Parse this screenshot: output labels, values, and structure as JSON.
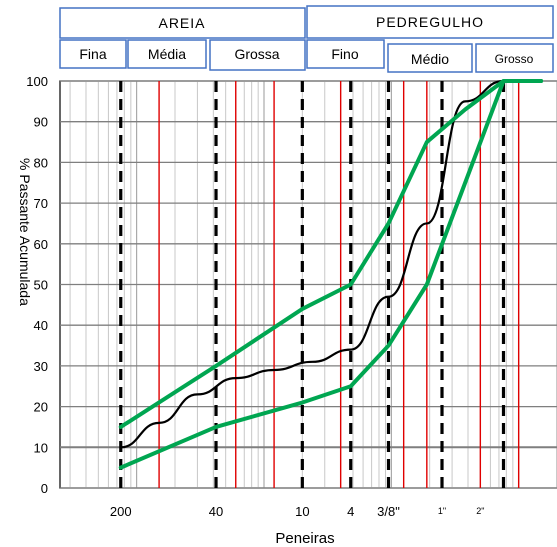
{
  "header": {
    "groups": [
      {
        "label": "AREIA"
      },
      {
        "label": "PEDREGULHO"
      }
    ],
    "subgroups": [
      {
        "label": "Fina"
      },
      {
        "label": "Média"
      },
      {
        "label": "Grossa"
      },
      {
        "label": "Fino"
      },
      {
        "label": "Médio"
      },
      {
        "label": "Grosso"
      }
    ]
  },
  "chart_data": {
    "type": "line",
    "xlabel": "Peneiras",
    "ylabel": "% Passante Acumulada",
    "ylim": [
      0,
      100
    ],
    "y_ticks": [
      "0",
      "10",
      "20",
      "30",
      "40",
      "50",
      "60",
      "70",
      "80",
      "90",
      "100"
    ],
    "x_tick_labels": [
      {
        "label": "200",
        "x": 0.075
      },
      {
        "label": "40",
        "x": 0.42
      },
      {
        "label": "10",
        "x": 2.0
      },
      {
        "label": "4",
        "x": 4.8
      },
      {
        "label": "3/8\"",
        "x": 9.5
      },
      {
        "label": "1\"",
        "x": 25
      },
      {
        "label": "2\"",
        "x": 50
      }
    ],
    "x_log": true,
    "grid": true,
    "series": [
      {
        "color": "#000000",
        "x": [
          0.075,
          0.15,
          0.3,
          0.6,
          1.2,
          2.4,
          4.8,
          9.5,
          19,
          38,
          76
        ],
        "values": [
          10,
          16,
          23,
          27,
          29,
          31,
          34,
          47,
          65,
          95,
          100
        ]
      },
      {
        "color": "#00a651",
        "x": [
          0.075,
          0.42,
          2.0,
          4.8,
          9.5,
          19,
          38,
          76,
          150
        ],
        "values": [
          15,
          30,
          44,
          50,
          65,
          85,
          93,
          100,
          100
        ]
      },
      {
        "color": "#00a651",
        "x": [
          0.075,
          0.42,
          2.0,
          4.8,
          9.5,
          19,
          38,
          76,
          150
        ],
        "values": [
          5,
          15,
          21,
          25,
          35,
          50,
          75,
          100,
          100
        ]
      }
    ],
    "boundary_lines_dashed": [
      0.075,
      0.42,
      2.0,
      4.8,
      9.5,
      25,
      76
    ],
    "sieve_lines_red": [
      0.15,
      0.6,
      1.2,
      4.0,
      12.5,
      19,
      50,
      100
    ]
  }
}
